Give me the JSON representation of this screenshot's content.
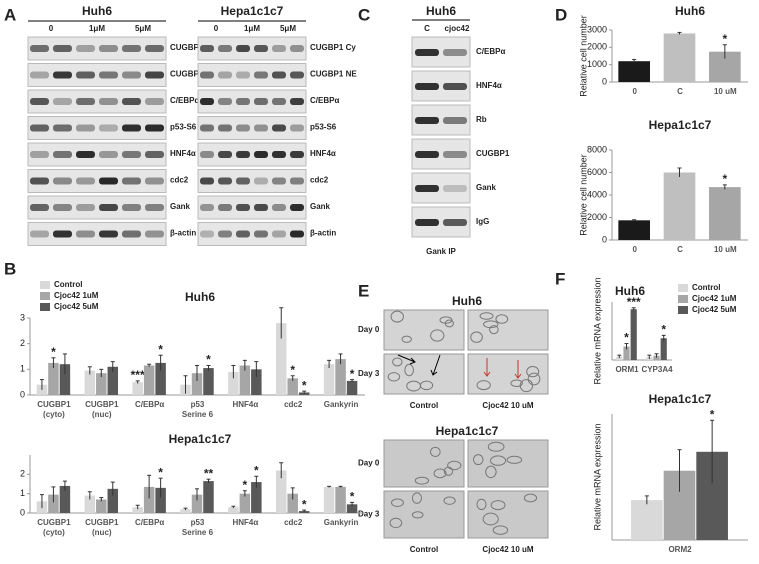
{
  "panel_labels": [
    "A",
    "B",
    "C",
    "D",
    "E",
    "F"
  ],
  "blots_a": {
    "groups": [
      {
        "title": "Huh6",
        "lanes": [
          "0",
          "1μM",
          "5μM"
        ]
      },
      {
        "title": "Hepa1c1c7",
        "lanes": [
          "0",
          "1μM",
          "5μM"
        ]
      }
    ],
    "rows": [
      "CUGBP1 Cy",
      "CUGBP1 NE",
      "C/EBPα",
      "p53-S6",
      "HNF4α",
      "cdc2",
      "Gank",
      "β-actin"
    ]
  },
  "blots_c": {
    "title": "Huh6",
    "lanes": [
      "C",
      "cjoc42"
    ],
    "rows": [
      "C/EBPα",
      "HNF4α",
      "Rb",
      "CUGBP1",
      "Gank",
      "IgG"
    ],
    "caption": "Gank IP"
  },
  "micrographs_e": [
    {
      "title": "Huh6",
      "rows": [
        "Day 0",
        "Day 3"
      ],
      "columns": [
        "Control",
        "Cjoc42 10 uM"
      ]
    },
    {
      "title": "Hepa1c1c7",
      "rows": [
        "Day 0",
        "Day 3"
      ],
      "columns": [
        "Control",
        "Cjoc42 10 uM"
      ]
    }
  ],
  "chart_data": [
    {
      "type": "bar",
      "title": "Huh6",
      "legend": true,
      "categories": [
        "CUGBP1 (cyto)",
        "CUGBP1 (nuc)",
        "C/EBPα",
        "p53 Serine 6",
        "HNF4α",
        "cdc2",
        "Gankyrin"
      ],
      "ylim": [
        0,
        3
      ],
      "yticks": [
        0,
        1,
        2,
        3
      ],
      "series": [
        {
          "name": "Control",
          "color": "#d9d9d9",
          "values": [
            0.4,
            0.95,
            0.5,
            0.4,
            0.9,
            2.8,
            1.2
          ],
          "errors": [
            0.2,
            0.15,
            0.05,
            0.35,
            0.25,
            0.6,
            0.15
          ],
          "significance": [
            null,
            null,
            "***",
            null,
            null,
            null,
            null
          ]
        },
        {
          "name": "Cjoc42 1uM",
          "color": "#a6a6a6",
          "values": [
            1.25,
            0.85,
            1.15,
            0.85,
            1.15,
            0.65,
            1.4
          ],
          "errors": [
            0.2,
            0.15,
            0.05,
            0.3,
            0.2,
            0.1,
            0.2
          ],
          "significance": [
            "*",
            null,
            null,
            null,
            null,
            "*",
            null
          ]
        },
        {
          "name": "Cjoc42 5uM",
          "color": "#595959",
          "values": [
            1.2,
            1.1,
            1.25,
            1.05,
            1.0,
            0.1,
            0.55
          ],
          "errors": [
            0.4,
            0.2,
            0.3,
            0.1,
            0.3,
            0.05,
            0.05
          ],
          "significance": [
            null,
            null,
            "*",
            "*",
            null,
            "*",
            "*"
          ]
        }
      ]
    },
    {
      "type": "bar",
      "title": "Hepa1c1c7",
      "legend": false,
      "categories": [
        "CUGBP1 (cyto)",
        "CUGBP1 (nuc)",
        "C/EBPα",
        "p53 Serine 6",
        "HNF4α",
        "cdc2",
        "Gankyrin"
      ],
      "ylim": [
        0,
        3
      ],
      "yticks": [
        0,
        1,
        2
      ],
      "series": [
        {
          "name": "Control",
          "color": "#d9d9d9",
          "values": [
            0.6,
            0.9,
            0.3,
            0.2,
            0.3,
            2.2,
            1.35
          ],
          "errors": [
            0.35,
            0.2,
            0.1,
            0.05,
            0.05,
            0.4,
            0.03
          ],
          "significance": [
            null,
            null,
            null,
            null,
            null,
            null,
            null
          ]
        },
        {
          "name": "Cjoc42 1uM",
          "color": "#a6a6a6",
          "values": [
            0.95,
            0.7,
            1.35,
            0.95,
            1.0,
            1.0,
            1.35
          ],
          "errors": [
            0.4,
            0.1,
            0.6,
            0.3,
            0.15,
            0.3,
            0.03
          ],
          "significance": [
            null,
            null,
            null,
            null,
            "*",
            null,
            null
          ]
        },
        {
          "name": "Cjoc42 5uM",
          "color": "#595959",
          "values": [
            1.4,
            1.25,
            1.3,
            1.65,
            1.6,
            0.1,
            0.45
          ],
          "errors": [
            0.25,
            0.35,
            0.5,
            0.1,
            0.3,
            0.05,
            0.1
          ],
          "significance": [
            null,
            null,
            "*",
            "**",
            "*",
            "*",
            "*"
          ]
        }
      ]
    },
    {
      "type": "bar",
      "title": "Huh6",
      "y_label": "Relative cell number",
      "categories": [
        "0",
        "C",
        "10 uM"
      ],
      "values": [
        1200,
        2800,
        1750
      ],
      "errors": [
        100,
        60,
        400
      ],
      "colors": [
        "#1a1a1a",
        "#bfbfbf",
        "#a6a6a6"
      ],
      "significance": [
        null,
        null,
        "*"
      ],
      "ylim": [
        0,
        3000
      ],
      "yticks": [
        0,
        1000,
        2000,
        3000
      ]
    },
    {
      "type": "bar",
      "title": "Hepa1c1c7",
      "y_label": "Relative cell number",
      "categories": [
        "0",
        "C",
        "10 uM"
      ],
      "values": [
        1750,
        6000,
        4700
      ],
      "errors": [
        50,
        400,
        200
      ],
      "colors": [
        "#1a1a1a",
        "#bfbfbf",
        "#a6a6a6"
      ],
      "significance": [
        null,
        null,
        "*"
      ],
      "ylim": [
        0,
        8000
      ],
      "yticks": [
        0,
        2000,
        4000,
        6000,
        8000
      ]
    },
    {
      "type": "bar",
      "title": "Huh6",
      "legend": true,
      "y_label": "Relative mRNA expression",
      "categories": [
        "ORM1",
        "CYP3A4"
      ],
      "ylim": [
        0,
        12
      ],
      "series": [
        {
          "name": "Control",
          "color": "#d9d9d9",
          "values": [
            0.7,
            0.6
          ],
          "errors": [
            0.3,
            0.4
          ],
          "significance": [
            null,
            null
          ]
        },
        {
          "name": "Cjoc42 1uM",
          "color": "#a6a6a6",
          "values": [
            2.8,
            0.9
          ],
          "errors": [
            0.6,
            0.4
          ],
          "significance": [
            "*",
            null
          ]
        },
        {
          "name": "Cjoc42 5uM",
          "color": "#595959",
          "values": [
            10.5,
            4.5
          ],
          "errors": [
            0.3,
            0.6
          ],
          "significance": [
            "***",
            "*"
          ]
        }
      ]
    },
    {
      "type": "bar",
      "title": "Hepa1c1c7",
      "y_label": "Relative mRNA expression",
      "categories": [
        "ORM2"
      ],
      "ylim": [
        0,
        3
      ],
      "series": [
        {
          "name": "Control",
          "color": "#d9d9d9",
          "values": [
            0.95
          ],
          "errors": [
            0.1
          ],
          "significance": [
            null
          ]
        },
        {
          "name": "Cjoc42 1uM",
          "color": "#a6a6a6",
          "values": [
            1.65
          ],
          "errors": [
            0.5
          ],
          "significance": [
            null
          ]
        },
        {
          "name": "Cjoc42 5uM",
          "color": "#595959",
          "values": [
            2.1
          ],
          "errors": [
            0.75
          ],
          "significance": [
            "*"
          ]
        }
      ]
    }
  ]
}
